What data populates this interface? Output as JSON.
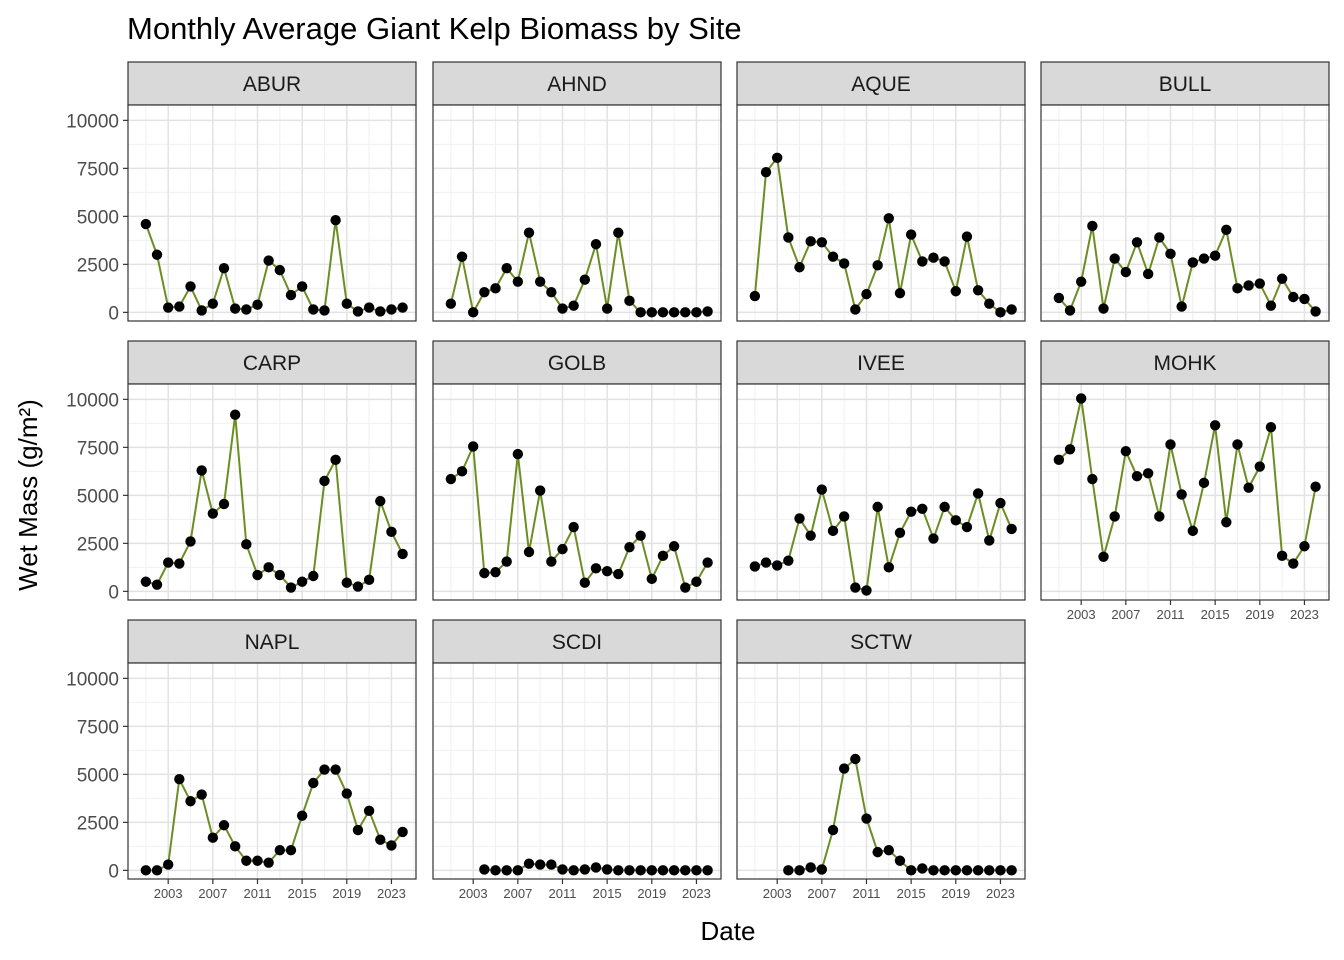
{
  "chart_data": {
    "type": "line",
    "title": "Monthly Average Giant Kelp Biomass by Site",
    "xlabel": "Date",
    "ylabel": "Wet Mass (g/m²)",
    "line_color": "#6b8e23",
    "point_color": "#000000",
    "ylim": [
      -450,
      10800
    ],
    "yticks": [
      0,
      2500,
      5000,
      7500,
      10000
    ],
    "xlim": [
      1999.4,
      2025.2
    ],
    "xticks": [
      2003,
      2007,
      2011,
      2015,
      2019,
      2023
    ],
    "grid": true,
    "facets": [
      {
        "site": "ABUR",
        "x": [
          2001,
          2002,
          2003,
          2004,
          2005,
          2006,
          2007,
          2008,
          2009,
          2010,
          2011,
          2012,
          2013,
          2014,
          2015,
          2016,
          2017,
          2018,
          2019,
          2020,
          2021,
          2022,
          2023,
          2024
        ],
        "y": [
          4600,
          3000,
          250,
          300,
          1350,
          100,
          450,
          2300,
          200,
          150,
          400,
          2700,
          2200,
          900,
          1350,
          150,
          100,
          4800,
          450,
          50,
          250,
          50,
          150,
          250
        ]
      },
      {
        "site": "AHND",
        "x": [
          2001,
          2002,
          2003,
          2004,
          2005,
          2006,
          2007,
          2008,
          2009,
          2010,
          2011,
          2012,
          2013,
          2014,
          2015,
          2016,
          2017,
          2018,
          2019,
          2020,
          2021,
          2022,
          2023,
          2024
        ],
        "y": [
          450,
          2900,
          0,
          1050,
          1250,
          2300,
          1600,
          4150,
          1600,
          1050,
          200,
          350,
          1700,
          3550,
          200,
          4150,
          600,
          0,
          0,
          0,
          0,
          0,
          0,
          50
        ]
      },
      {
        "site": "AQUE",
        "x": [
          2001,
          2002,
          2003,
          2004,
          2005,
          2006,
          2007,
          2008,
          2009,
          2010,
          2011,
          2012,
          2013,
          2014,
          2015,
          2016,
          2017,
          2018,
          2019,
          2020,
          2021,
          2022,
          2023,
          2024
        ],
        "y": [
          850,
          7300,
          8050,
          3900,
          2350,
          3700,
          3650,
          2900,
          2550,
          150,
          950,
          2450,
          4900,
          1000,
          4050,
          2650,
          2850,
          2650,
          1100,
          3950,
          1150,
          450,
          0,
          150
        ]
      },
      {
        "site": "BULL",
        "x": [
          2001,
          2002,
          2003,
          2004,
          2005,
          2006,
          2007,
          2008,
          2009,
          2010,
          2011,
          2012,
          2013,
          2014,
          2015,
          2016,
          2017,
          2018,
          2019,
          2020,
          2021,
          2022,
          2023,
          2024
        ],
        "y": [
          750,
          100,
          1600,
          4500,
          200,
          2800,
          2100,
          3650,
          2000,
          3900,
          3050,
          300,
          2600,
          2800,
          2950,
          4300,
          1250,
          1400,
          1500,
          350,
          1750,
          800,
          700,
          50
        ]
      },
      {
        "site": "CARP",
        "x": [
          2001,
          2002,
          2003,
          2004,
          2005,
          2006,
          2007,
          2008,
          2009,
          2010,
          2011,
          2012,
          2013,
          2014,
          2015,
          2016,
          2017,
          2018,
          2019,
          2020,
          2021,
          2022,
          2023,
          2024
        ],
        "y": [
          500,
          350,
          1500,
          1450,
          2600,
          6300,
          4050,
          4550,
          9200,
          2450,
          850,
          1250,
          850,
          200,
          500,
          800,
          5750,
          6850,
          450,
          250,
          600,
          4700,
          3100,
          1950
        ]
      },
      {
        "site": "GOLB",
        "x": [
          2001,
          2002,
          2003,
          2004,
          2005,
          2006,
          2007,
          2008,
          2009,
          2010,
          2011,
          2012,
          2013,
          2014,
          2015,
          2016,
          2017,
          2018,
          2019,
          2020,
          2021,
          2022,
          2023,
          2024
        ],
        "y": [
          5850,
          6250,
          7550,
          950,
          1000,
          1550,
          7150,
          2050,
          5250,
          1550,
          2200,
          3350,
          450,
          1200,
          1050,
          900,
          2300,
          2900,
          650,
          1850,
          2350,
          200,
          500,
          1500
        ]
      },
      {
        "site": "IVEE",
        "x": [
          2001,
          2002,
          2003,
          2004,
          2005,
          2006,
          2007,
          2008,
          2009,
          2010,
          2011,
          2012,
          2013,
          2014,
          2015,
          2016,
          2017,
          2018,
          2019,
          2020,
          2021,
          2022,
          2023,
          2024
        ],
        "y": [
          1300,
          1500,
          1350,
          1600,
          3800,
          2900,
          5300,
          3150,
          3900,
          200,
          50,
          4400,
          1250,
          3050,
          4150,
          4300,
          2750,
          4400,
          3700,
          3350,
          5100,
          2650,
          4600,
          3250
        ]
      },
      {
        "site": "MOHK",
        "x": [
          2001,
          2002,
          2003,
          2004,
          2005,
          2006,
          2007,
          2008,
          2009,
          2010,
          2011,
          2012,
          2013,
          2014,
          2015,
          2016,
          2017,
          2018,
          2019,
          2020,
          2021,
          2022,
          2023,
          2024
        ],
        "y": [
          6850,
          7400,
          10050,
          5850,
          1800,
          3900,
          7300,
          6000,
          6150,
          3900,
          7650,
          5050,
          3150,
          5650,
          8650,
          3600,
          7650,
          5400,
          6500,
          8550,
          1850,
          1450,
          2350,
          5450
        ]
      },
      {
        "site": "NAPL",
        "x": [
          2001,
          2002,
          2003,
          2004,
          2005,
          2006,
          2007,
          2008,
          2009,
          2010,
          2011,
          2012,
          2013,
          2014,
          2015,
          2016,
          2017,
          2018,
          2019,
          2020,
          2021,
          2022,
          2023,
          2024
        ],
        "y": [
          0,
          0,
          300,
          4750,
          3600,
          3950,
          1700,
          2350,
          1250,
          500,
          500,
          400,
          1050,
          1050,
          2850,
          4550,
          5250,
          5250,
          4000,
          2100,
          3100,
          1600,
          1300,
          2000
        ]
      },
      {
        "site": "SCDI",
        "x": [
          2004,
          2005,
          2006,
          2007,
          2008,
          2009,
          2010,
          2011,
          2012,
          2013,
          2014,
          2015,
          2016,
          2017,
          2018,
          2019,
          2020,
          2021,
          2022,
          2023,
          2024
        ],
        "y": [
          50,
          0,
          0,
          0,
          350,
          300,
          300,
          50,
          0,
          50,
          150,
          50,
          0,
          0,
          0,
          0,
          0,
          0,
          0,
          0,
          0
        ]
      },
      {
        "site": "SCTW",
        "x": [
          2004,
          2005,
          2006,
          2007,
          2008,
          2009,
          2010,
          2011,
          2012,
          2013,
          2014,
          2015,
          2016,
          2017,
          2018,
          2019,
          2020,
          2021,
          2022,
          2023,
          2024
        ],
        "y": [
          0,
          0,
          150,
          50,
          2100,
          5300,
          5800,
          2700,
          950,
          1050,
          500,
          0,
          100,
          0,
          0,
          0,
          0,
          0,
          0,
          0,
          0
        ]
      }
    ]
  }
}
